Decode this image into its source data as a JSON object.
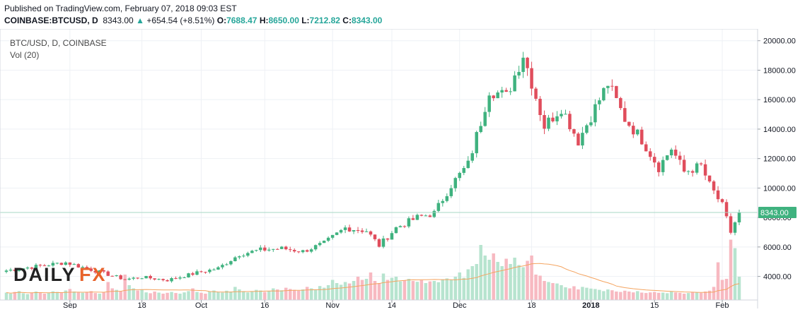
{
  "header": {
    "published": "Published on TradingView.com, February 07, 2018 09:03 EST",
    "symbol": "COINBASE:BTCUSD, D",
    "last": "8343.00",
    "change": "+654.54 (+8.51%)",
    "open_label": "O:",
    "open": "7688.47",
    "high_label": "H:",
    "high": "8650.00",
    "low_label": "L:",
    "low": "7212.82",
    "close_label": "C:",
    "close": "8343.00"
  },
  "legend": {
    "title": "BTC/USD, D, COINBASE",
    "volume": "Vol (20)"
  },
  "logo": {
    "part1": "DAILY",
    "part2": "FX"
  },
  "colors": {
    "up": "#3fb27f",
    "down": "#e04d5c",
    "vol_up": "#b7e4cf",
    "vol_down": "#f7b9c1",
    "vol_ma": "#f4a460",
    "grid": "#eef1f5",
    "last_line": "#a7d7c5",
    "badge": "#3fb27f"
  },
  "chart_data": {
    "type": "candlestick",
    "title": "BTC/USD, D, COINBASE",
    "ylim": [
      2400,
      20800
    ],
    "y_ticks": [
      4000,
      6000,
      8000,
      10000,
      12000,
      14000,
      16000,
      18000,
      20000
    ],
    "y_tick_labels": [
      "4000.00",
      "6000.00",
      "8000.00",
      "10000.00",
      "12000.00",
      "14000.00",
      "16000.00",
      "18000.00",
      "20000.00"
    ],
    "x_ticks": [
      {
        "index": 15,
        "label": "Sep"
      },
      {
        "index": 32,
        "label": "18"
      },
      {
        "index": 46,
        "label": "Oct"
      },
      {
        "index": 61,
        "label": "16"
      },
      {
        "index": 77,
        "label": "Nov"
      },
      {
        "index": 91,
        "label": "14"
      },
      {
        "index": 107,
        "label": "Dec"
      },
      {
        "index": 124,
        "label": "18"
      },
      {
        "index": 138,
        "label": "2018"
      },
      {
        "index": 153,
        "label": "15"
      },
      {
        "index": 169,
        "label": "Feb"
      }
    ],
    "last_price": 8343.0,
    "last_price_label": "8343.00",
    "anchors": [
      [
        0,
        4400
      ],
      [
        10,
        4800
      ],
      [
        14,
        4950
      ],
      [
        22,
        4300
      ],
      [
        28,
        3800
      ],
      [
        32,
        3950
      ],
      [
        38,
        3750
      ],
      [
        45,
        4250
      ],
      [
        50,
        4550
      ],
      [
        55,
        5500
      ],
      [
        60,
        5800
      ],
      [
        65,
        5900
      ],
      [
        70,
        5700
      ],
      [
        75,
        6250
      ],
      [
        80,
        7300
      ],
      [
        85,
        7100
      ],
      [
        88,
        6100
      ],
      [
        92,
        7300
      ],
      [
        97,
        8000
      ],
      [
        101,
        8300
      ],
      [
        105,
        10200
      ],
      [
        109,
        11600
      ],
      [
        112,
        14500
      ],
      [
        114,
        16700
      ],
      [
        118,
        16200
      ],
      [
        122,
        19100
      ],
      [
        124,
        17200
      ],
      [
        127,
        14200
      ],
      [
        131,
        15500
      ],
      [
        135,
        13200
      ],
      [
        138,
        14900
      ],
      [
        142,
        17100
      ],
      [
        146,
        14700
      ],
      [
        150,
        13300
      ],
      [
        154,
        11400
      ],
      [
        157,
        12700
      ],
      [
        160,
        11100
      ],
      [
        164,
        11500
      ],
      [
        166,
        10200
      ],
      [
        169,
        8800
      ],
      [
        171,
        7000
      ],
      [
        173,
        8343
      ]
    ],
    "volume": {
      "ma_label": "Vol (20)",
      "values": [
        0.35,
        0.3,
        0.38,
        0.42,
        0.32,
        0.28,
        0.35,
        0.4,
        0.36,
        0.3,
        0.33,
        0.41,
        0.38,
        0.34,
        0.45,
        0.52,
        0.4,
        0.36,
        0.34,
        0.38,
        0.42,
        0.33,
        0.3,
        0.36,
        0.85,
        0.55,
        0.48,
        0.4,
        1.2,
        0.7,
        0.55,
        0.45,
        0.5,
        0.36,
        0.32,
        0.4,
        0.35,
        0.3,
        0.34,
        0.38,
        0.33,
        0.3,
        0.36,
        0.42,
        0.55,
        0.38,
        0.34,
        0.3,
        0.4,
        0.45,
        0.38,
        0.35,
        0.44,
        0.4,
        0.62,
        0.5,
        0.42,
        0.36,
        0.4,
        0.48,
        0.45,
        0.38,
        0.42,
        0.55,
        0.5,
        0.46,
        0.58,
        0.52,
        0.48,
        0.44,
        0.5,
        0.62,
        0.55,
        0.48,
        0.66,
        0.58,
        0.7,
        0.95,
        0.8,
        0.72,
        0.85,
        0.78,
        0.9,
        1.1,
        0.95,
        1.0,
        1.3,
        0.9,
        0.8,
        1.25,
        0.95,
        1.05,
        1.1,
        0.88,
        0.92,
        1.0,
        0.9,
        0.86,
        0.94,
        0.8,
        0.88,
        0.9,
        0.84,
        0.98,
        1.02,
        0.95,
        1.1,
        1.3,
        1.05,
        1.45,
        1.6,
        1.7,
        2.6,
        2.1,
        1.9,
        2.2,
        1.8,
        1.6,
        1.95,
        1.7,
        2.0,
        1.65,
        1.55,
        1.85,
        2.1,
        1.2,
        1.15,
        0.9,
        0.85,
        0.8,
        0.78,
        0.7,
        0.6,
        0.55,
        0.65,
        0.5,
        0.62,
        0.58,
        0.54,
        0.52,
        0.48,
        0.42,
        0.5,
        0.46,
        0.4,
        0.38,
        0.44,
        0.4,
        0.36,
        0.42,
        0.35,
        0.33,
        0.36,
        0.38,
        0.34,
        0.35,
        0.32,
        0.4,
        0.36,
        0.34,
        0.3,
        0.33,
        0.38,
        0.35,
        0.34,
        0.4,
        0.44,
        0.62,
        1.78,
        0.95,
        1.0,
        2.85,
        2.45,
        1.1
      ]
    }
  }
}
